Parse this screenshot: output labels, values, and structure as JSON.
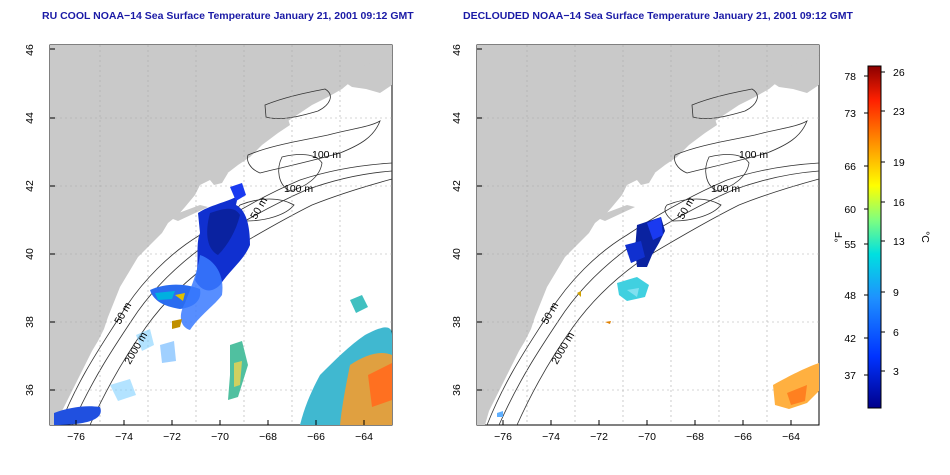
{
  "panels": [
    {
      "title": "RU COOL NOAA−14 Sea Surface Temperature January 21, 2001 09:12 GMT"
    },
    {
      "title": "DECLOUDED NOAA−14 Sea Surface Temperature January 21, 2001 09:12 GMT"
    }
  ],
  "axes": {
    "lon_ticks": [
      "−76",
      "−74",
      "−72",
      "−70",
      "−68",
      "−66",
      "−64"
    ],
    "lat_ticks": [
      "36",
      "38",
      "40",
      "42",
      "44",
      "46"
    ]
  },
  "contours": [
    {
      "label": "100 m"
    },
    {
      "label": "100 m"
    },
    {
      "label": "50 m"
    },
    {
      "label": "50 m"
    },
    {
      "label": "2000 m"
    }
  ],
  "colorbar": {
    "unit_f": "°F",
    "unit_c": "°C",
    "f_labels": [
      "78",
      "73",
      "66",
      "60",
      "55",
      "48",
      "42",
      "37"
    ],
    "c_labels": [
      "26",
      "23",
      "19",
      "16",
      "13",
      "9",
      "6",
      "3"
    ],
    "colors": {
      "cold": "#0000aa",
      "cool": "#1e90ff",
      "mid": "#00e0e0",
      "warm": "#ffd700",
      "hot": "#ff4500",
      "max": "#8b0000"
    }
  },
  "colors": {
    "land": "#c9c9c9",
    "title": "#1a1aa6"
  }
}
